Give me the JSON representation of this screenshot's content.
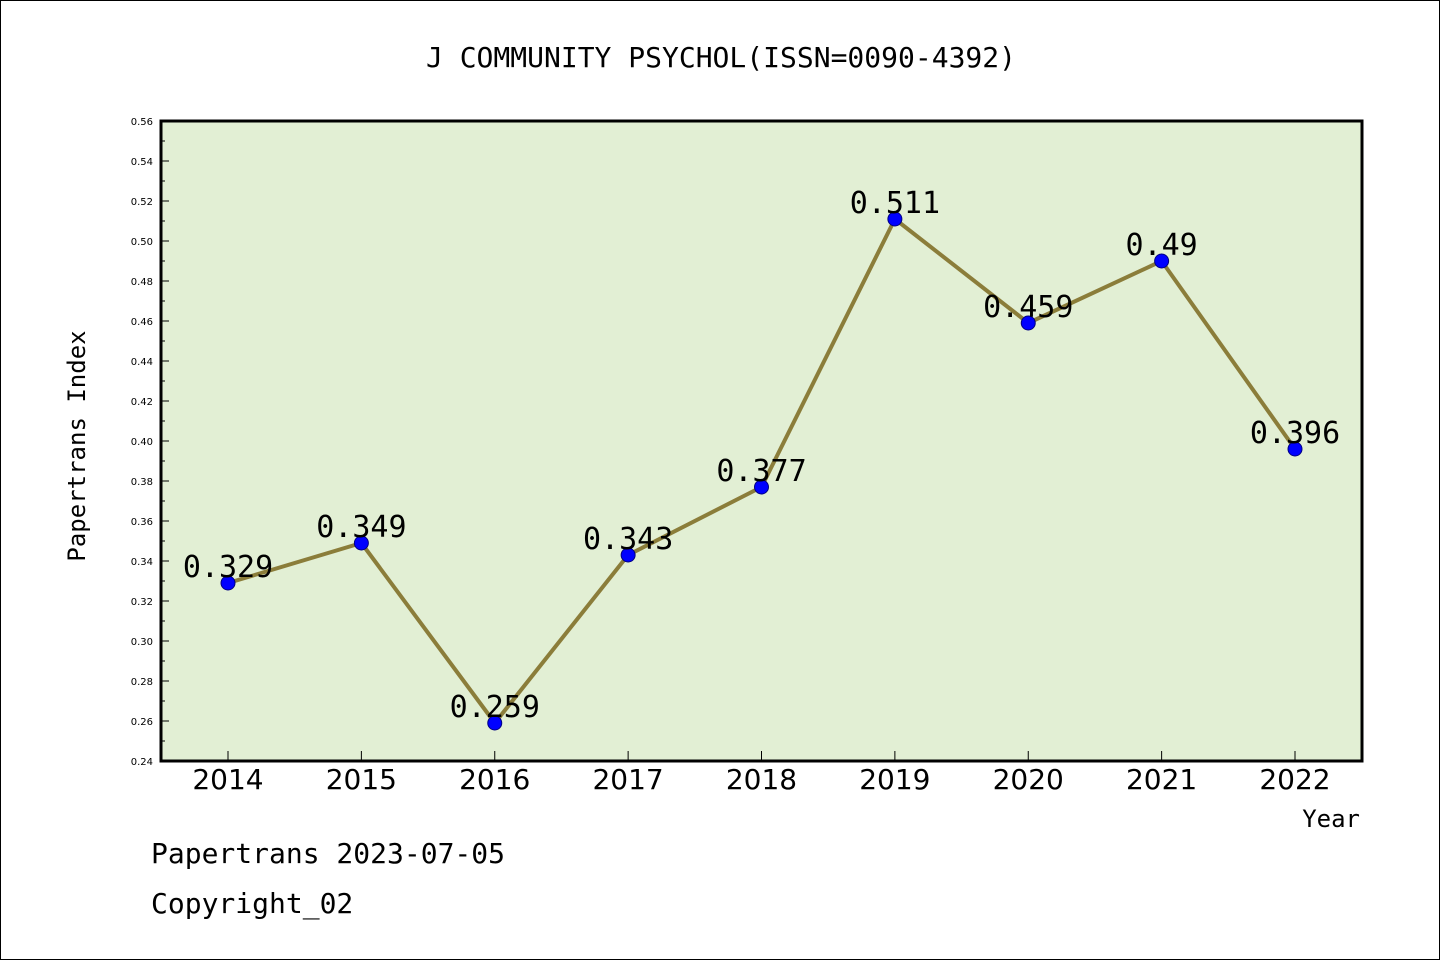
{
  "chart_data": {
    "type": "line",
    "title": "J COMMUNITY PSYCHOL(ISSN=0090-4392)",
    "xlabel": "Year",
    "ylabel": "Papertrans Index",
    "categories": [
      "2014",
      "2015",
      "2016",
      "2017",
      "2018",
      "2019",
      "2020",
      "2021",
      "2022"
    ],
    "series": [
      {
        "values": [
          0.329,
          0.349,
          0.259,
          0.343,
          0.377,
          0.511,
          0.459,
          0.49,
          0.396
        ],
        "labels": [
          "0.329",
          "0.349",
          "0.259",
          "0.343",
          "0.377",
          "0.511",
          "0.459",
          "0.49",
          "0.396"
        ]
      }
    ],
    "ylim": [
      0.24,
      0.56
    ],
    "yticks": [
      "0.24",
      "0.26",
      "0.28",
      "0.30",
      "0.32",
      "0.34",
      "0.36",
      "0.38",
      "0.40",
      "0.42",
      "0.44",
      "0.46",
      "0.48",
      "0.50",
      "0.52",
      "0.54",
      "0.56"
    ],
    "grid": false,
    "legend": "none"
  },
  "colors": {
    "plot_background": "#e2efd4",
    "line": "#8b7d3a",
    "marker": "#0000ff",
    "axis": "#000000"
  },
  "footer": {
    "date_text": "Papertrans 2023-07-05",
    "copyright_text": "Copyright_02"
  }
}
